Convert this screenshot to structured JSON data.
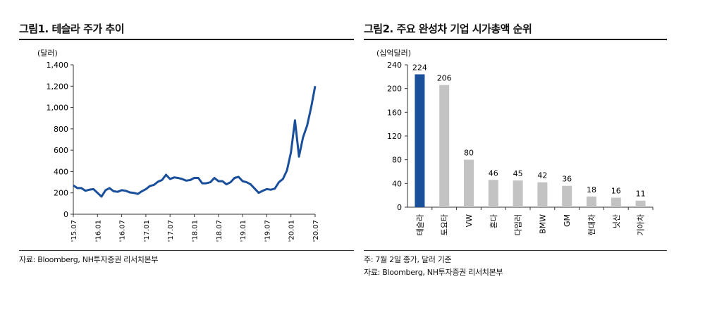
{
  "figure1": {
    "title": "그림1. 테슬라 주가 추이",
    "unit": "(달러)",
    "source": "자료: Bloomberg, NH투자증권 리서치본부"
  },
  "figure2": {
    "title": "그림2. 주요 완성차 기업 시가총액 순위",
    "unit": "(십억달러)",
    "note": "주: 7월 2일 종가, 달러 기준",
    "source": "자료: Bloomberg, NH투자증권 리서치본부"
  },
  "chart_data": [
    {
      "type": "line",
      "title": "그림1. 테슬라 주가 추이",
      "ylabel": "(달러)",
      "ylim": [
        0,
        1400
      ],
      "yticks": [
        0,
        200,
        400,
        600,
        800,
        1000,
        1200,
        1400
      ],
      "ytick_labels": [
        "0",
        "200",
        "400",
        "600",
        "800",
        "1,000",
        "1,200",
        "1,400"
      ],
      "xticks": [
        "'15.07",
        "'16.01",
        "'16.07",
        "'17.01",
        "'17.07",
        "'18.01",
        "'18.07",
        "'19.01",
        "'19.07",
        "'20.01",
        "'20.07"
      ],
      "color": "#1a4f9c",
      "series": [
        {
          "x": [
            "2015-07",
            "2015-08",
            "2015-09",
            "2015-10",
            "2015-11",
            "2015-12",
            "2016-01",
            "2016-02",
            "2016-03",
            "2016-04",
            "2016-05",
            "2016-06",
            "2016-07",
            "2016-08",
            "2016-09",
            "2016-10",
            "2016-11",
            "2016-12",
            "2017-01",
            "2017-02",
            "2017-03",
            "2017-04",
            "2017-05",
            "2017-06",
            "2017-07",
            "2017-08",
            "2017-09",
            "2017-10",
            "2017-11",
            "2017-12",
            "2018-01",
            "2018-02",
            "2018-03",
            "2018-04",
            "2018-05",
            "2018-06",
            "2018-07",
            "2018-08",
            "2018-09",
            "2018-10",
            "2018-11",
            "2018-12",
            "2019-01",
            "2019-02",
            "2019-03",
            "2019-04",
            "2019-05",
            "2019-06",
            "2019-07",
            "2019-08",
            "2019-09",
            "2019-10",
            "2019-11",
            "2019-12",
            "2020-01",
            "2020-02",
            "2020-03",
            "2020-04",
            "2020-05",
            "2020-06",
            "2020-07"
          ],
          "values": [
            270,
            245,
            245,
            220,
            230,
            235,
            200,
            165,
            225,
            245,
            215,
            210,
            225,
            220,
            205,
            200,
            190,
            215,
            235,
            265,
            275,
            305,
            320,
            370,
            330,
            345,
            340,
            330,
            315,
            320,
            340,
            340,
            290,
            290,
            300,
            340,
            310,
            310,
            280,
            300,
            340,
            350,
            310,
            300,
            280,
            240,
            200,
            220,
            235,
            230,
            240,
            300,
            330,
            410,
            580,
            880,
            540,
            720,
            830,
            1000,
            1200
          ]
        }
      ]
    },
    {
      "type": "bar",
      "title": "그림2. 주요 완성차 기업 시가총액 순위",
      "ylabel": "(십억달러)",
      "ylim": [
        0,
        240
      ],
      "yticks": [
        0,
        40,
        80,
        120,
        160,
        200,
        240
      ],
      "categories": [
        "테슬라",
        "토요타",
        "VW",
        "혼다",
        "다임러",
        "BMW",
        "GM",
        "현대차",
        "닛산",
        "기아차"
      ],
      "values": [
        224,
        206,
        80,
        46,
        45,
        42,
        36,
        18,
        16,
        11
      ],
      "highlight_color": "#1a4f9c",
      "bar_color": "#c3c3c3"
    }
  ]
}
